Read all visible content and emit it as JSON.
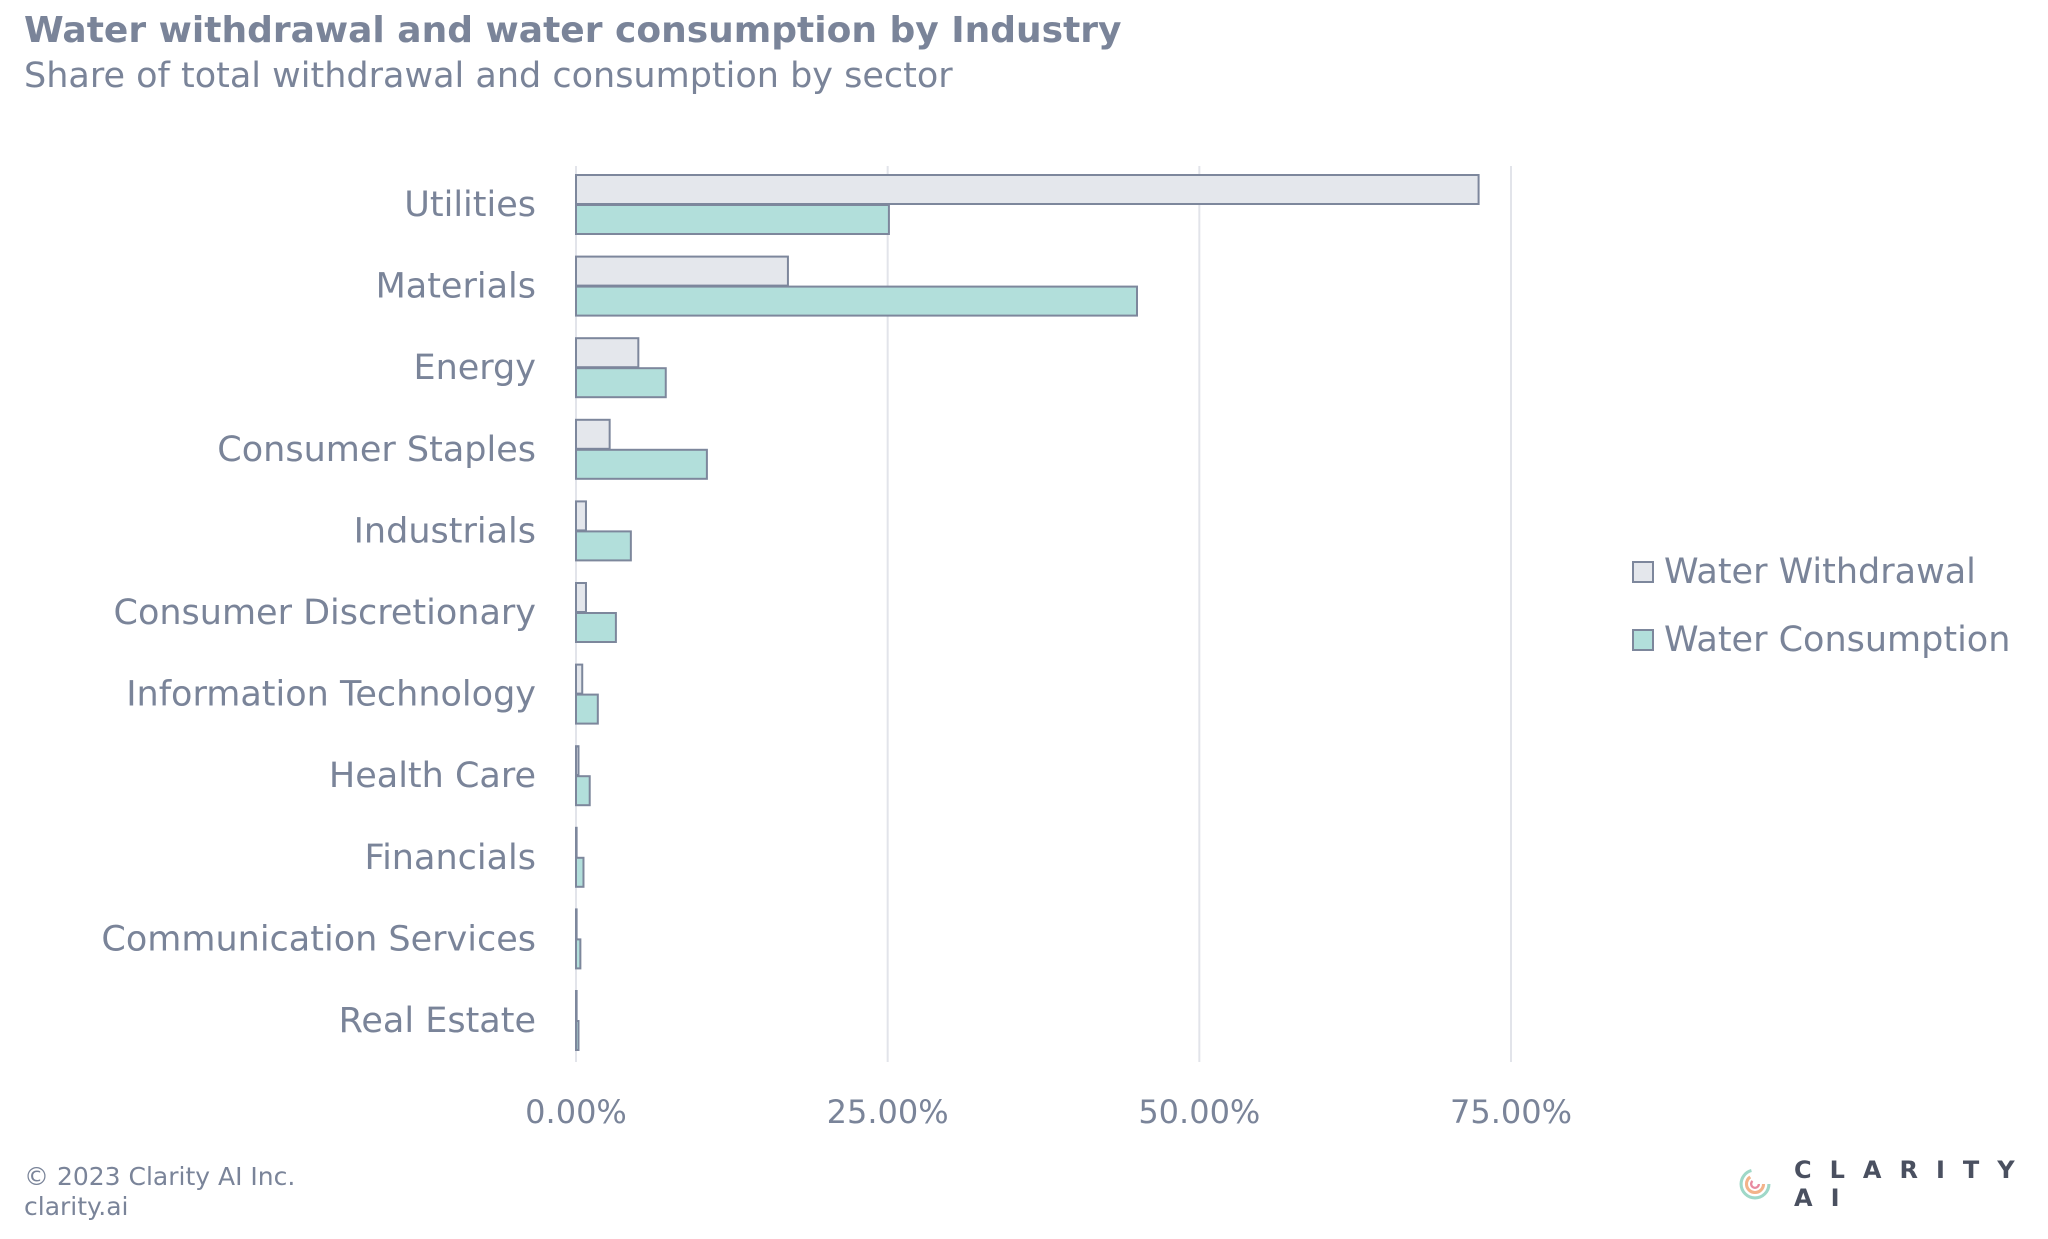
{
  "chart_data": {
    "type": "bar",
    "orientation": "horizontal",
    "title": "Water withdrawal and water consumption by Industry",
    "subtitle": "Share of total withdrawal and consumption by sector",
    "categories": [
      "Utilities",
      "Materials",
      "Energy",
      "Consumer Staples",
      "Industrials",
      "Consumer Discretionary",
      "Information Technology",
      "Health Care",
      "Financials",
      "Communication Services",
      "Real Estate"
    ],
    "series": [
      {
        "name": "Water Withdrawal",
        "color": "#e4e7ec",
        "values": [
          72.4,
          17.0,
          5.0,
          2.7,
          0.8,
          0.8,
          0.5,
          0.2,
          0.05,
          0.05,
          0.05
        ]
      },
      {
        "name": "Water Consumption",
        "color": "#b2dfdb",
        "values": [
          25.1,
          45.0,
          7.2,
          10.5,
          4.4,
          3.2,
          1.75,
          1.1,
          0.6,
          0.35,
          0.2
        ]
      }
    ],
    "xlim": [
      0,
      75
    ],
    "xticks": [
      "0.00%",
      "25.00%",
      "50.00%",
      "75.00%"
    ],
    "xtick_values": [
      0,
      25,
      50,
      75
    ],
    "grid": "vertical",
    "legend": "right",
    "bar_stroke": "#7d879c"
  },
  "footer": {
    "copyright": "© 2023 Clarity AI Inc.",
    "site": "clarity.ai"
  },
  "logo": {
    "text": "CLARITY AI"
  }
}
